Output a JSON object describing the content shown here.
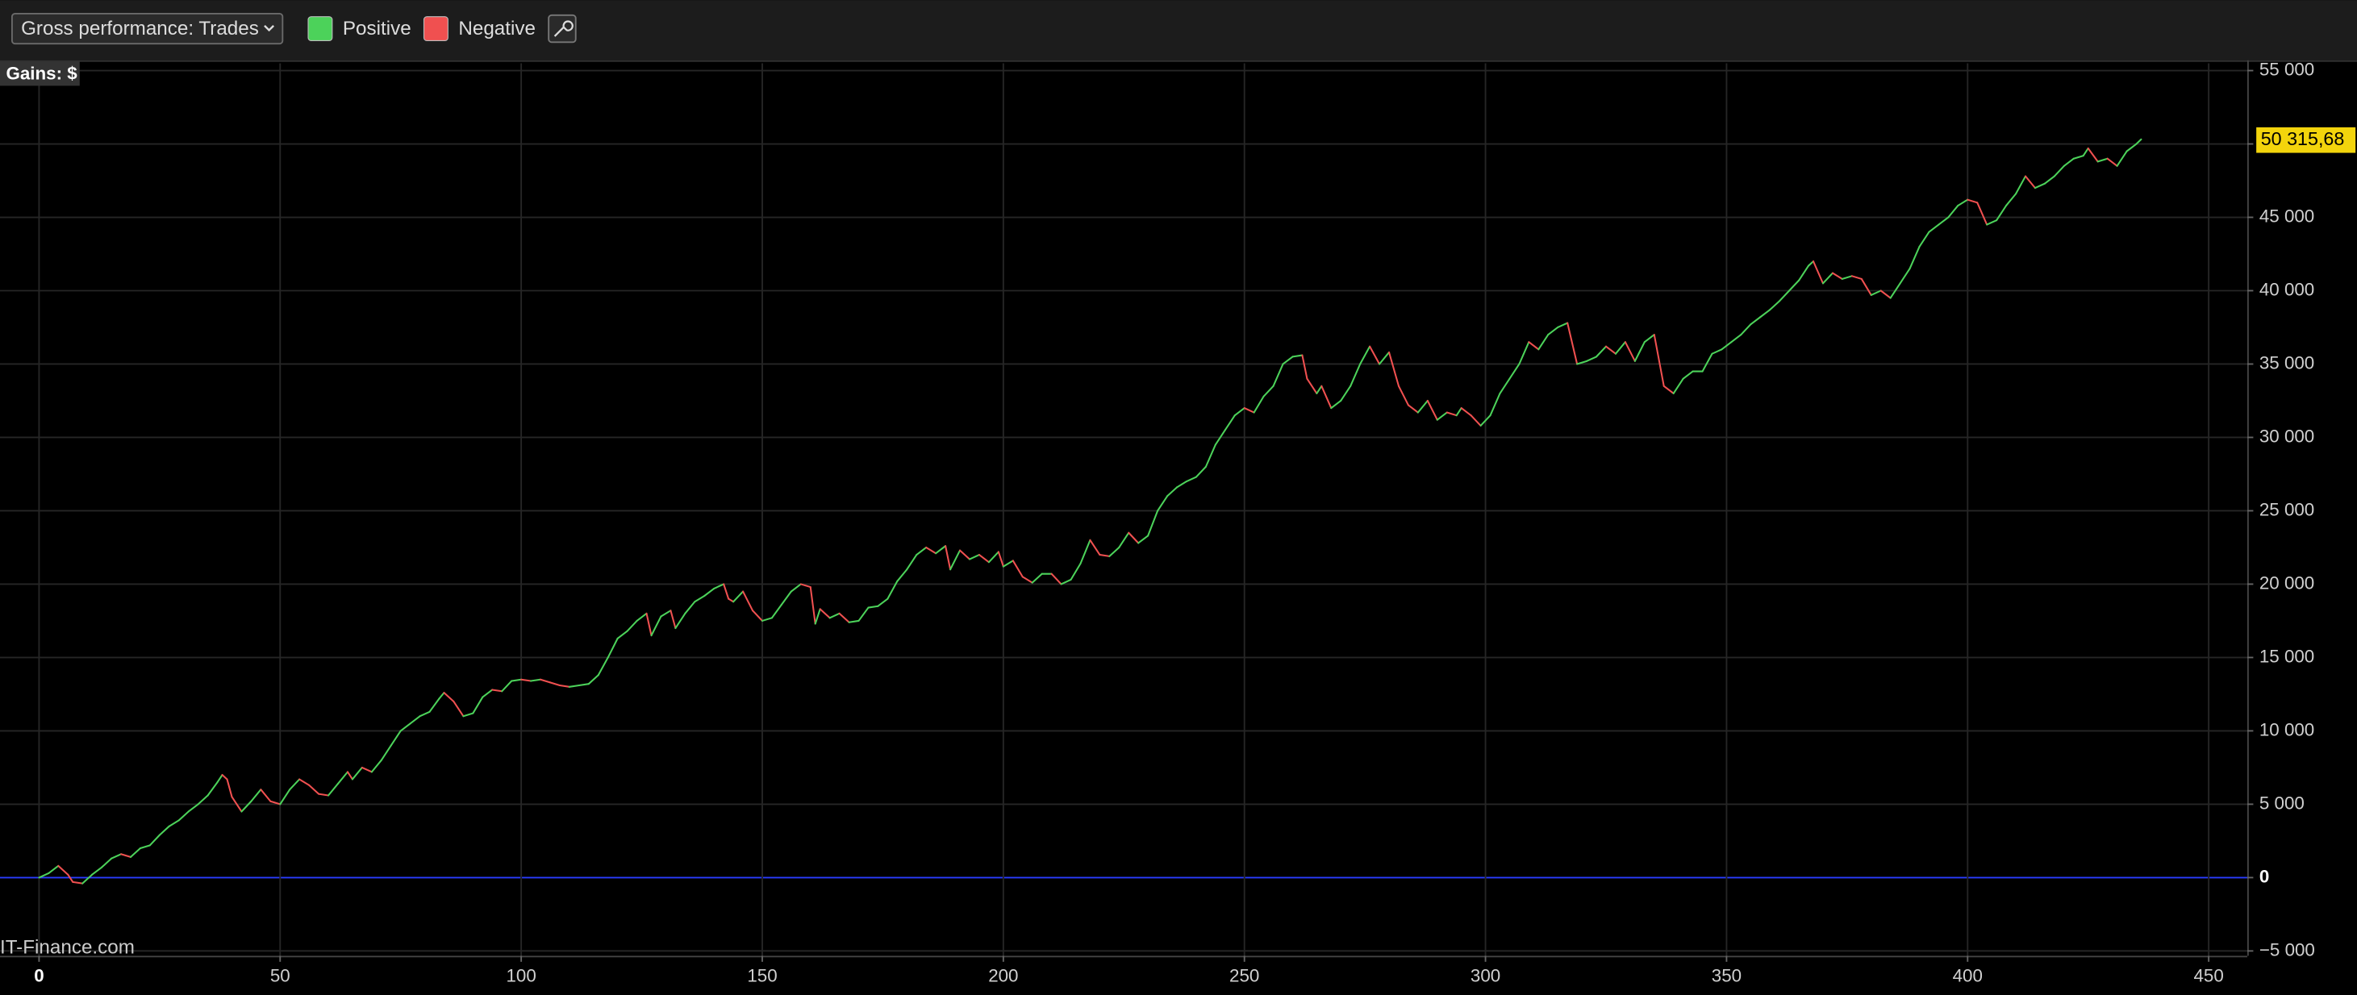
{
  "toolbar": {
    "selector": "Gross performance: Trades"
  },
  "chart_data": {
    "type": "line",
    "axis_title": "Gains: $",
    "watermark": "IT-Finance.com",
    "legend": [
      {
        "name": "Positive",
        "color": "#4cd25a"
      },
      {
        "name": "Negative",
        "color": "#f05050"
      }
    ],
    "zero_line_color": "#2a3cff",
    "xlim": [
      -8.1,
      458
    ],
    "xticks": [
      0,
      50,
      100,
      150,
      200,
      250,
      300,
      350,
      400,
      450
    ],
    "ylim": [
      -5330,
      55500
    ],
    "yticks": [
      {
        "value": -5000,
        "label": "−5 000"
      },
      0,
      {
        "value": 5000,
        "label": "5 000"
      },
      {
        "value": 10000,
        "label": "10 000"
      },
      {
        "value": 15000,
        "label": "15 000"
      },
      {
        "value": 20000,
        "label": "20 000"
      },
      {
        "value": 25000,
        "label": "25 000"
      },
      {
        "value": 30000,
        "label": "30 000"
      },
      {
        "value": 35000,
        "label": "35 000"
      },
      {
        "value": 40000,
        "label": "40 000"
      },
      {
        "value": 45000,
        "label": "45 000"
      },
      {
        "value": 50000,
        "label": "50 000"
      },
      {
        "value": 55000,
        "label": "55 000"
      }
    ],
    "last_value": {
      "value": 50315.68,
      "label": "50 315,68"
    },
    "grid": true,
    "x": [
      0,
      2,
      4,
      6,
      7,
      9,
      11,
      13,
      15,
      17,
      19,
      21,
      23,
      25,
      27,
      29,
      31,
      33,
      35,
      37,
      38,
      39,
      40,
      42,
      44,
      46,
      48,
      50,
      52,
      54,
      56,
      58,
      60,
      62,
      64,
      65,
      67,
      69,
      71,
      73,
      75,
      77,
      79,
      81,
      83,
      84,
      86,
      88,
      90,
      92,
      94,
      96,
      98,
      100,
      102,
      104,
      106,
      108,
      110,
      112,
      114,
      116,
      118,
      120,
      122,
      124,
      126,
      127,
      129,
      131,
      132,
      134,
      136,
      138,
      140,
      142,
      143,
      144,
      146,
      148,
      150,
      152,
      154,
      156,
      158,
      160,
      161,
      162,
      164,
      166,
      168,
      170,
      172,
      174,
      176,
      178,
      180,
      182,
      184,
      186,
      188,
      189,
      191,
      193,
      195,
      197,
      199,
      200,
      202,
      204,
      206,
      208,
      210,
      212,
      214,
      216,
      218,
      220,
      222,
      224,
      226,
      228,
      230,
      232,
      234,
      236,
      238,
      240,
      242,
      244,
      246,
      248,
      250,
      252,
      254,
      256,
      258,
      260,
      262,
      263,
      265,
      266,
      268,
      270,
      272,
      274,
      276,
      278,
      280,
      282,
      284,
      286,
      288,
      290,
      292,
      294,
      295,
      297,
      299,
      301,
      303,
      305,
      307,
      309,
      311,
      313,
      315,
      317,
      319,
      321,
      323,
      325,
      327,
      329,
      331,
      333,
      335,
      337,
      339,
      341,
      343,
      345,
      347,
      349,
      351,
      353,
      355,
      357,
      359,
      361,
      363,
      365,
      367,
      368,
      370,
      372,
      374,
      376,
      378,
      380,
      382,
      384,
      386,
      388,
      390,
      392,
      394,
      396,
      398,
      400,
      402,
      404,
      406,
      408,
      410,
      412,
      414,
      416,
      418,
      420,
      422,
      424,
      425,
      427,
      429,
      431,
      433,
      435,
      436
    ],
    "values": [
      0,
      300,
      800,
      200,
      -300,
      -400,
      200,
      700,
      1300,
      1600,
      1400,
      2000,
      2200,
      2900,
      3500,
      3900,
      4500,
      5000,
      5600,
      6500,
      7000,
      6700,
      5500,
      4500,
      5200,
      6000,
      5200,
      5000,
      6000,
      6700,
      6300,
      5700,
      5600,
      6400,
      7200,
      6700,
      7500,
      7200,
      8000,
      9000,
      10000,
      10500,
      11000,
      11300,
      12200,
      12600,
      12000,
      11000,
      11200,
      12300,
      12800,
      12700,
      13400,
      13500,
      13400,
      13500,
      13300,
      13100,
      13000,
      13100,
      13200,
      13800,
      15000,
      16300,
      16800,
      17500,
      18000,
      16500,
      17800,
      18200,
      17000,
      18000,
      18800,
      19200,
      19700,
      20000,
      19000,
      18800,
      19500,
      18200,
      17500,
      17700,
      18600,
      19500,
      20000,
      19800,
      17300,
      18300,
      17700,
      18000,
      17400,
      17500,
      18400,
      18500,
      19000,
      20200,
      21000,
      22000,
      22500,
      22100,
      22600,
      21000,
      22300,
      21700,
      22000,
      21500,
      22200,
      21200,
      21600,
      20500,
      20100,
      20700,
      20700,
      20000,
      20300,
      21400,
      23000,
      22000,
      21900,
      22500,
      23500,
      22800,
      23300,
      25000,
      26000,
      26600,
      27000,
      27300,
      28000,
      29500,
      30500,
      31500,
      32000,
      31700,
      32800,
      33500,
      35000,
      35500,
      35600,
      34000,
      33000,
      33500,
      32000,
      32500,
      33500,
      35000,
      36200,
      35000,
      35800,
      33500,
      32200,
      31700,
      32500,
      31200,
      31700,
      31500,
      32000,
      31500,
      30800,
      31500,
      33000,
      34000,
      35000,
      36500,
      36000,
      37000,
      37500,
      37800,
      35000,
      35200,
      35500,
      36200,
      35700,
      36500,
      35200,
      36500,
      37000,
      33500,
      33000,
      34000,
      34500,
      34500,
      35700,
      36000,
      36500,
      37000,
      37700,
      38200,
      38700,
      39300,
      40000,
      40700,
      41700,
      42000,
      40500,
      41200,
      40800,
      41000,
      40800,
      39700,
      40000,
      39500,
      40500,
      41500,
      43000,
      44000,
      44500,
      45000,
      45800,
      46200,
      46000,
      44500,
      44800,
      45800,
      46600,
      47800,
      47000,
      47300,
      47800,
      48500,
      49000,
      49200,
      49700,
      48800,
      49000,
      48500,
      49500,
      50000,
      50315.68
    ]
  }
}
